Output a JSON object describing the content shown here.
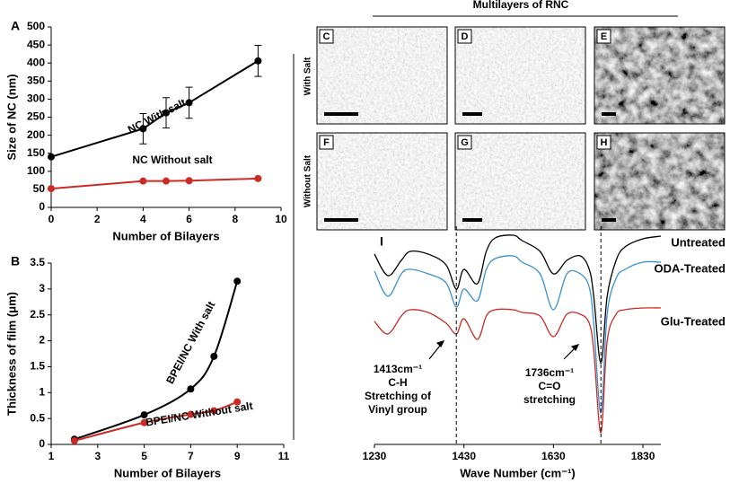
{
  "figure": {
    "header": "Multilayers of RNC",
    "row_labels": [
      "With Salt",
      "Without Salt"
    ],
    "image_labels": [
      "C",
      "D",
      "E",
      "F",
      "G",
      "H"
    ]
  },
  "chart_data": [
    {
      "type": "line",
      "label": "A",
      "xlabel": "Number of Bilayers",
      "ylabel": "Size of NC (nm)",
      "x": [
        0,
        4,
        5,
        6,
        9
      ],
      "series": [
        {
          "name": "NC With salt",
          "color": "#000000",
          "values": [
            140,
            218,
            262,
            290,
            406
          ],
          "errors": [
            null,
            42,
            42,
            43,
            43
          ]
        },
        {
          "name": "NC Without salt",
          "color": "#cc2a24",
          "values": [
            52,
            73,
            73,
            74,
            80
          ]
        }
      ],
      "xlim": [
        0,
        10
      ],
      "xticks": [
        0,
        2,
        4,
        6,
        8,
        10
      ],
      "ylim": [
        0,
        500
      ],
      "yticks": [
        0,
        50,
        100,
        150,
        200,
        250,
        300,
        350,
        400,
        450,
        500
      ]
    },
    {
      "type": "scatter",
      "label": "B",
      "xlabel": "Number of Bilayers",
      "ylabel": "Thickness of film (μm)",
      "x": [
        2,
        5,
        7,
        8,
        9
      ],
      "series": [
        {
          "name": "BPEI/NC With salt",
          "color": "#000000",
          "values": [
            0.1,
            0.57,
            1.07,
            1.7,
            3.15
          ]
        },
        {
          "name": "BPEI/NC Without salt",
          "color": "#cc2a24",
          "values": [
            0.07,
            0.42,
            0.58,
            0.65,
            0.82
          ]
        }
      ],
      "xlim": [
        1,
        11
      ],
      "xticks": [
        1,
        3,
        5,
        7,
        9,
        11
      ],
      "ylim": [
        0,
        3.5
      ],
      "yticks": [
        0,
        0.5,
        1,
        1.5,
        2,
        2.5,
        3,
        3.5
      ]
    },
    {
      "type": "spectrum",
      "label": "I",
      "xlabel": "Wave Number (cm⁻¹)",
      "x": [
        1230,
        1260,
        1290,
        1310,
        1350,
        1390,
        1413,
        1430,
        1460,
        1480,
        1500,
        1540,
        1560,
        1600,
        1630,
        1660,
        1690,
        1710,
        1720,
        1736,
        1750,
        1770,
        1790,
        1830,
        1870
      ],
      "series": [
        {
          "name": "Untreated",
          "color": "#000000",
          "values": [
            212,
            188,
            205,
            215,
            212,
            200,
            173,
            195,
            179,
            215,
            230,
            233,
            227,
            215,
            190,
            205,
            210,
            195,
            165,
            90,
            165,
            205,
            220,
            229,
            232
          ]
        },
        {
          "name": "ODA-Treated",
          "color": "#3a8fcf",
          "values": [
            193,
            165,
            190,
            195,
            190,
            180,
            153,
            173,
            160,
            195,
            207,
            210,
            203,
            190,
            150,
            190,
            190,
            175,
            135,
            35,
            145,
            185,
            195,
            203,
            203
          ]
        },
        {
          "name": "Glu-Treated",
          "color": "#cc2a24",
          "values": [
            137,
            123,
            143,
            150,
            147,
            135,
            123,
            140,
            117,
            143,
            150,
            150,
            147,
            143,
            120,
            145,
            145,
            135,
            105,
            13,
            115,
            145,
            150,
            152,
            152
          ]
        }
      ],
      "markers": [
        {
          "x": 1413,
          "lines": [
            "1413cm⁻¹",
            "C-H",
            "Stretching of",
            "Vinyl group"
          ]
        },
        {
          "x": 1736,
          "lines": [
            "1736cm⁻¹",
            "C=O",
            "stretching"
          ]
        }
      ],
      "xlim": [
        1230,
        1870
      ],
      "xticks": [
        1230,
        1430,
        1630,
        1830
      ],
      "ylim": [
        0,
        235
      ]
    }
  ]
}
